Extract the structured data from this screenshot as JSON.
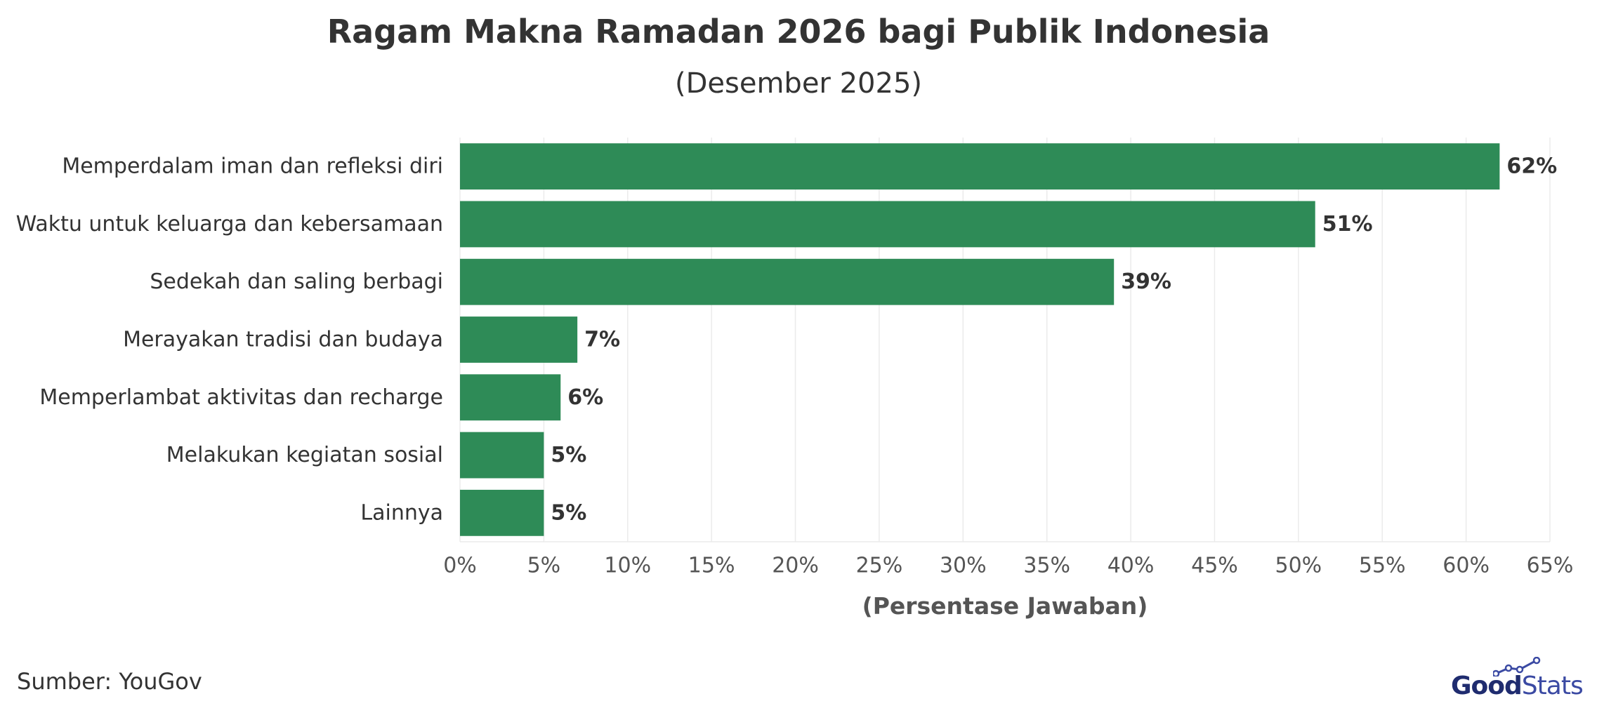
{
  "title": "Ragam Makna Ramadan 2026 bagi Publik Indonesia",
  "subtitle": "(Desember 2025)",
  "source": "Sumber: YouGov",
  "logo": {
    "part1": "Good",
    "part2": "Stats"
  },
  "colors": {
    "bar": "#2e8b57",
    "grid": "#ebebeb",
    "text": "#333333",
    "axis_text": "#555555"
  },
  "chart_data": {
    "type": "bar",
    "orientation": "horizontal",
    "title": "Ragam Makna Ramadan 2026 bagi Publik Indonesia",
    "subtitle": "(Desember 2025)",
    "xlabel": "(Persentase Jawaban)",
    "ylabel": "",
    "categories": [
      "Memperdalam iman dan refleksi diri",
      "Waktu untuk keluarga dan kebersamaan",
      "Sedekah dan saling berbagi",
      "Merayakan tradisi dan budaya",
      "Memperlambat aktivitas dan recharge",
      "Melakukan kegiatan sosial",
      "Lainnya"
    ],
    "values": [
      62,
      51,
      39,
      7,
      6,
      5,
      5
    ],
    "data_labels": [
      "62%",
      "51%",
      "39%",
      "7%",
      "6%",
      "5%",
      "5%"
    ],
    "xlim": [
      0,
      65
    ],
    "xticks": [
      0,
      5,
      10,
      15,
      20,
      25,
      30,
      35,
      40,
      45,
      50,
      55,
      60,
      65
    ],
    "xtick_labels": [
      "0%",
      "5%",
      "10%",
      "15%",
      "20%",
      "25%",
      "30%",
      "35%",
      "40%",
      "45%",
      "50%",
      "55%",
      "60%",
      "65%"
    ],
    "grid": true,
    "legend": "none"
  }
}
